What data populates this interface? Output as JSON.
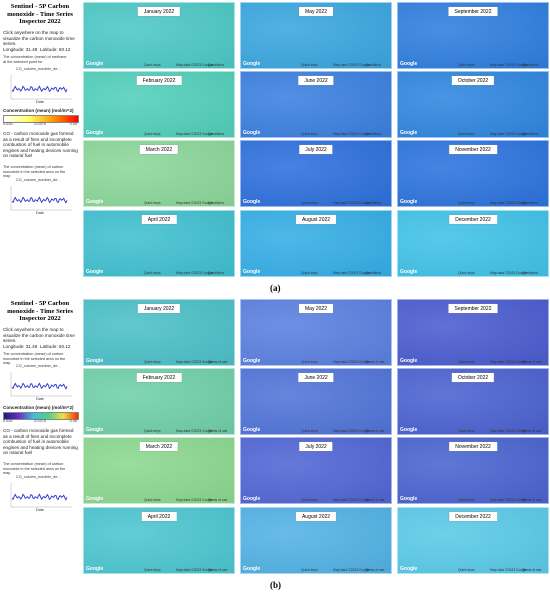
{
  "panels": [
    {
      "label": "(a)",
      "sidebar": {
        "title": "Sentinel - 5P Carbon monoxide - Time Series Inspector 2022",
        "instruction": "Click anywhere on the map to visualize the carbon monoxide time series.",
        "longitude": "Longitude: 31.48",
        "latitude": "Latitude: 50.12",
        "chart1_title": "The concentration (mean) of methane at the selected point for",
        "chart1_legend": "CO_column_number_de...",
        "chart1_x_axis": "Date",
        "colorbar_title": "Concentration (mean) (mol/m^2)",
        "colorbar_colors": [
          "#ffffff",
          "#ffff66",
          "#ff9900",
          "#ff0000"
        ],
        "colorbar_ticks": [
          "0.025",
          "0.0375",
          "0.05"
        ],
        "description": "CO - carbon monoxide gas formed as a result of fires and incomplete combustion of fuel in automobile engines and heating devices running on natural fuel",
        "chart2_title": "The concentration (mean) of carbon monoxide in the selected area on the map",
        "chart2_legend": "CO_column_number_de...",
        "chart2_x_axis": "Date"
      },
      "footer": [
        "Google",
        "Quick keys",
        "Map data ©2023 Google",
        "Conditions"
      ],
      "maps": [
        {
          "month": "January 2022",
          "color": "#4cc8c6"
        },
        {
          "month": "May 2022",
          "color": "#3aa6e0"
        },
        {
          "month": "September 2022",
          "color": "#2f7edf"
        },
        {
          "month": "February 2022",
          "color": "#52cfbb"
        },
        {
          "month": "June 2022",
          "color": "#3b80e0"
        },
        {
          "month": "October 2022",
          "color": "#2f86e0"
        },
        {
          "month": "March 2022",
          "color": "#8cd79a"
        },
        {
          "month": "July 2022",
          "color": "#2e70dd"
        },
        {
          "month": "November 2022",
          "color": "#2c73dd"
        },
        {
          "month": "April 2022",
          "color": "#40c0d0"
        },
        {
          "month": "August 2022",
          "color": "#35aee6"
        },
        {
          "month": "December 2022",
          "color": "#40c2e8"
        }
      ]
    },
    {
      "label": "(b)",
      "sidebar": {
        "title": "Sentinel - 5P Carbon monoxide - Time Series Inspector 2022",
        "instruction": "Click anywhere on the map to visualize the carbon monoxide time series.",
        "longitude": "Longitude: 31.48",
        "latitude": "Latitude: 50.12",
        "chart1_title": "The concentration (mean) of carbon monoxide in the selected area on the map",
        "chart1_legend": "CO_column_number_de...",
        "chart1_x_axis": "Date",
        "colorbar_title": "Concentration (mean) (mol/m^2)",
        "colorbar_colors": [
          "#1a1a8c",
          "#6a2fbf",
          "#3ac0e0",
          "#4fd08a",
          "#f0e040",
          "#ff2a00"
        ],
        "colorbar_ticks": [
          "0.025",
          "0.0375",
          "0.05"
        ],
        "description": "CO - carbon monoxide gas formed as a result of fires and incomplete combustion of fuel in automobile engines and heating devices running on natural fuel",
        "chart2_title": "The concentration (mean) of carbon monoxide in the selected area on the map",
        "chart2_legend": "CO_column_number_de...",
        "chart2_x_axis": "Date"
      },
      "footer": [
        "Google",
        "Quick keys",
        "Map data ©2023 Google",
        "Terms of use"
      ],
      "maps": [
        {
          "month": "January 2022",
          "color": "#4cc0c8"
        },
        {
          "month": "May 2022",
          "color": "#5a80e0"
        },
        {
          "month": "September 2022",
          "color": "#4a5cd0"
        },
        {
          "month": "February 2022",
          "color": "#70d0a8"
        },
        {
          "month": "June 2022",
          "color": "#5074d8"
        },
        {
          "month": "October 2022",
          "color": "#4a62d0"
        },
        {
          "month": "March 2022",
          "color": "#8cd890"
        },
        {
          "month": "July 2022",
          "color": "#5066d5"
        },
        {
          "month": "November 2022",
          "color": "#4a64d0"
        },
        {
          "month": "April 2022",
          "color": "#4cc6d0"
        },
        {
          "month": "August 2022",
          "color": "#52b2e5"
        },
        {
          "month": "December 2022",
          "color": "#5acae8"
        }
      ]
    }
  ]
}
